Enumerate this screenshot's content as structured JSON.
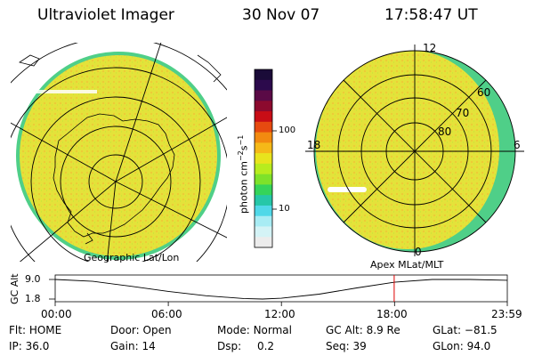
{
  "header": {
    "instrument": "Ultraviolet Imager",
    "date": "30 Nov 07",
    "time": "17:58:47 UT"
  },
  "left_panel": {
    "label": "Geographic Lat/Lon"
  },
  "right_panel": {
    "label": "Apex MLat/MLT",
    "mlt_labels": {
      "top": "12",
      "left": "18",
      "right": "6",
      "bottom": "0"
    },
    "lat_labels": [
      "60",
      "70",
      "80"
    ]
  },
  "colorbar": {
    "unit_label": "photon cm",
    "unit_sup1": "−2",
    "unit_mid": "s",
    "unit_sup2": "−1",
    "ticks": [
      "100",
      "10"
    ],
    "colors": [
      "#1a0b38",
      "#2c0a4c",
      "#5a0a46",
      "#8c0a2e",
      "#c80d16",
      "#e64a10",
      "#f28a10",
      "#f5b918",
      "#e8e41d",
      "#b8ec1e",
      "#7ee22a",
      "#35d45a",
      "#26c7a8",
      "#50d8e8",
      "#a8ecf4",
      "#d4f3f6",
      "#ececec"
    ]
  },
  "altitude_plot": {
    "axis_label": "GC Alt",
    "y_ticks": [
      "9.0",
      "1.8"
    ],
    "x_ticks": [
      "00:00",
      "06:00",
      "12:00",
      "18:00",
      "23:59"
    ],
    "altitude_profile": [
      [
        0,
        9.0
      ],
      [
        2,
        8.3
      ],
      [
        4,
        6.5
      ],
      [
        6,
        4.6
      ],
      [
        8,
        3.0
      ],
      [
        10,
        2.0
      ],
      [
        11,
        1.8
      ],
      [
        12,
        2.1
      ],
      [
        14,
        3.6
      ],
      [
        16,
        5.9
      ],
      [
        18,
        8.0
      ],
      [
        20,
        9.0
      ],
      [
        22,
        9.0
      ],
      [
        23.98,
        8.7
      ]
    ],
    "current_time_hours": 17.98
  },
  "status": {
    "flt_label": "Flt:",
    "flt_value": "HOME",
    "door_label": "Door:",
    "door_value": "Open",
    "mode_label": "Mode:",
    "mode_value": "Normal",
    "gcalt_label": "GC Alt:",
    "gcalt_value": "8.9 Re",
    "glat_label": "GLat:",
    "glat_value": "−81.5",
    "ip_label": "IP:",
    "ip_value": "36.0",
    "gain_label": "Gain:",
    "gain_value": "14",
    "dsp_label": "Dsp:",
    "dsp_value": "0.2",
    "seq_label": "Seq:",
    "seq_value": "39",
    "glon_label": "GLon:",
    "glon_value": "94.0"
  },
  "colors": {
    "image_fill": "#e4e23a",
    "image_fill_alt": "#f0c030",
    "image_edge": "#4fcf88",
    "grid": "#000000",
    "cursor": "#e00000"
  }
}
